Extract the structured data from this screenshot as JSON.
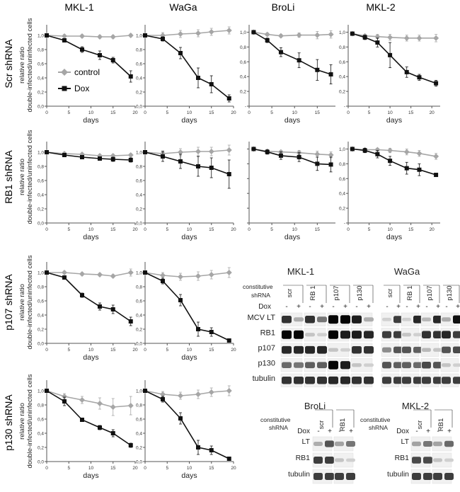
{
  "labels": {
    "days": "days",
    "relative_ratio": "relative ratio",
    "double_infected": "double-infected/uninfected cells",
    "legend_control": "control",
    "legend_dox": "Dox",
    "constitutive": "constitutive",
    "shrna": "shRNA",
    "dox": "Dox",
    "minus": "-",
    "plus": "+"
  },
  "colors": {
    "control": "#a6a6a6",
    "dox": "#111111"
  },
  "column_titles": [
    "MKL-1",
    "WaGa",
    "BroLi",
    "MKL-2"
  ],
  "row_labels": [
    "Scr shRNA",
    "RB1 shRNA",
    "p107 shRNA",
    "p130 shRNA"
  ],
  "chart_data": [
    {
      "type": "line",
      "row": "Scr shRNA",
      "title": "MKL-1",
      "xlabel": "days",
      "ylabel": "relative ratio double-infected/uninfected cells",
      "xticks": [
        "0",
        "5",
        "10",
        "15",
        "20"
      ],
      "xlim": [
        0,
        20
      ],
      "yticks": [
        "0,0",
        "0,2",
        "0,4",
        "0,6",
        "0,8",
        "1,0"
      ],
      "ylim": [
        0,
        1.15
      ],
      "legend": [
        "control",
        "Dox"
      ],
      "series": [
        {
          "name": "control",
          "x": [
            0,
            4,
            8,
            12,
            15,
            19
          ],
          "y": [
            1.0,
            0.99,
            0.99,
            0.98,
            0.98,
            1.0
          ],
          "err": [
            0.01,
            0.02,
            0.02,
            0.02,
            0.02,
            0.02
          ]
        },
        {
          "name": "Dox",
          "x": [
            0,
            4,
            8,
            12,
            15,
            19
          ],
          "y": [
            1.0,
            0.93,
            0.8,
            0.72,
            0.65,
            0.42
          ],
          "err": [
            0.01,
            0.02,
            0.04,
            0.06,
            0.04,
            0.08
          ]
        }
      ]
    },
    {
      "type": "line",
      "row": "Scr shRNA",
      "title": "WaGa",
      "xlabel": "days",
      "xticks": [
        "0",
        "5",
        "10",
        "15",
        "20"
      ],
      "xlim": [
        0,
        20
      ],
      "yticks": [
        "0,0",
        "0,2",
        "0,4",
        "0,6",
        "0,8",
        "1,0"
      ],
      "ylim": [
        0,
        1.15
      ],
      "series": [
        {
          "name": "control",
          "x": [
            0,
            4,
            8,
            12,
            15,
            19
          ],
          "y": [
            1.0,
            1.0,
            1.02,
            1.03,
            1.05,
            1.07
          ],
          "err": [
            0.01,
            0.04,
            0.05,
            0.05,
            0.05,
            0.05
          ]
        },
        {
          "name": "Dox",
          "x": [
            0,
            4,
            8,
            12,
            15,
            19
          ],
          "y": [
            1.0,
            0.95,
            0.75,
            0.4,
            0.31,
            0.11
          ],
          "err": [
            0.01,
            0.03,
            0.08,
            0.14,
            0.12,
            0.05
          ]
        }
      ]
    },
    {
      "type": "line",
      "row": "Scr shRNA",
      "title": "BroLi",
      "xlabel": "days",
      "xticks": [
        "0",
        "5",
        "10",
        "15"
      ],
      "xlim": [
        0,
        19
      ],
      "yticks": [
        "-",
        "0,2",
        "0,4",
        "0,6",
        "0,8",
        "1,0"
      ],
      "ylim": [
        0,
        1.1
      ],
      "series": [
        {
          "name": "control",
          "x": [
            1,
            4,
            7,
            11,
            15,
            18
          ],
          "y": [
            1.0,
            0.97,
            0.95,
            0.96,
            0.96,
            0.97
          ],
          "err": [
            0.01,
            0.02,
            0.02,
            0.03,
            0.05,
            0.05
          ]
        },
        {
          "name": "Dox",
          "x": [
            1,
            4,
            7,
            11,
            15,
            18
          ],
          "y": [
            1.0,
            0.89,
            0.73,
            0.62,
            0.49,
            0.43
          ],
          "err": [
            0.01,
            0.03,
            0.06,
            0.1,
            0.14,
            0.13
          ]
        }
      ]
    },
    {
      "type": "line",
      "row": "Scr shRNA",
      "title": "MKL-2",
      "xlabel": "days",
      "xticks": [
        "0",
        "5",
        "10",
        "15",
        "20"
      ],
      "xlim": [
        0,
        22
      ],
      "yticks": [
        "-",
        "0,2",
        "0,4",
        "0,6",
        "0,8",
        "1,0"
      ],
      "ylim": [
        0,
        1.1
      ],
      "series": [
        {
          "name": "control",
          "x": [
            1,
            4,
            7,
            10,
            14,
            17,
            21
          ],
          "y": [
            0.98,
            0.95,
            0.94,
            0.93,
            0.92,
            0.92,
            0.92
          ],
          "err": [
            0.01,
            0.02,
            0.03,
            0.04,
            0.04,
            0.04,
            0.05
          ]
        },
        {
          "name": "Dox",
          "x": [
            1,
            4,
            7,
            10,
            14,
            17,
            21
          ],
          "y": [
            0.98,
            0.93,
            0.86,
            0.69,
            0.46,
            0.39,
            0.31
          ],
          "err": [
            0.01,
            0.03,
            0.06,
            0.17,
            0.07,
            0.04,
            0.04
          ]
        }
      ]
    },
    {
      "type": "line",
      "row": "RB1 shRNA",
      "title": "MKL-1",
      "xlabel": "days",
      "ylabel": "relative ratio double-infected/uninfected cells",
      "xticks": [
        "0",
        "5",
        "10",
        "15",
        "20"
      ],
      "xlim": [
        0,
        20
      ],
      "yticks": [
        "0,0",
        "0,2",
        "0,4",
        "0,6",
        "0,8",
        "1,0"
      ],
      "ylim": [
        0,
        1.15
      ],
      "series": [
        {
          "name": "control",
          "x": [
            0,
            4,
            8,
            12,
            15,
            19
          ],
          "y": [
            1.0,
            0.98,
            0.97,
            0.95,
            0.95,
            0.96
          ],
          "err": [
            0.01,
            0.02,
            0.02,
            0.02,
            0.02,
            0.02
          ]
        },
        {
          "name": "Dox",
          "x": [
            0,
            4,
            8,
            12,
            15,
            19
          ],
          "y": [
            1.0,
            0.96,
            0.93,
            0.91,
            0.9,
            0.89
          ],
          "err": [
            0.01,
            0.02,
            0.02,
            0.02,
            0.03,
            0.03
          ]
        }
      ]
    },
    {
      "type": "line",
      "row": "RB1 shRNA",
      "title": "WaGa",
      "xlabel": "days",
      "xticks": [
        "0",
        "5",
        "10",
        "15",
        "20"
      ],
      "xlim": [
        0,
        20
      ],
      "yticks": [
        "0,0",
        "0,2",
        "0,4",
        "0,6",
        "0,8",
        "1,0"
      ],
      "ylim": [
        0,
        1.15
      ],
      "series": [
        {
          "name": "control",
          "x": [
            0,
            4,
            8,
            12,
            15,
            19
          ],
          "y": [
            1.0,
            0.98,
            1.0,
            1.01,
            1.01,
            1.03
          ],
          "err": [
            0.01,
            0.04,
            0.05,
            0.06,
            0.06,
            0.07
          ]
        },
        {
          "name": "Dox",
          "x": [
            0,
            4,
            8,
            12,
            15,
            19
          ],
          "y": [
            1.0,
            0.94,
            0.87,
            0.8,
            0.78,
            0.69
          ],
          "err": [
            0.01,
            0.07,
            0.1,
            0.14,
            0.14,
            0.2
          ]
        }
      ]
    },
    {
      "type": "line",
      "row": "RB1 shRNA",
      "title": "BroLi",
      "xlabel": "days",
      "xticks": [
        "0",
        "5",
        "10",
        "15"
      ],
      "xlim": [
        0,
        19
      ],
      "yticks": [
        "",
        "",
        "",
        "",
        "",
        ""
      ],
      "ylim": [
        0,
        1.1
      ],
      "series": [
        {
          "name": "control",
          "x": [
            1,
            4,
            7,
            11,
            15,
            18
          ],
          "y": [
            1.0,
            0.97,
            0.96,
            0.95,
            0.93,
            0.92
          ],
          "err": [
            0.01,
            0.02,
            0.02,
            0.03,
            0.04,
            0.04
          ]
        },
        {
          "name": "Dox",
          "x": [
            1,
            4,
            7,
            11,
            15,
            18
          ],
          "y": [
            1.0,
            0.96,
            0.91,
            0.89,
            0.8,
            0.79
          ],
          "err": [
            0.01,
            0.03,
            0.05,
            0.06,
            0.09,
            0.1
          ]
        }
      ]
    },
    {
      "type": "line",
      "row": "RB1 shRNA",
      "title": "MKL-2",
      "xlabel": "days",
      "xticks": [
        "0",
        "5",
        "10",
        "15",
        "20"
      ],
      "xlim": [
        0,
        22
      ],
      "yticks": [
        "-",
        "0,2",
        "0,4",
        "0,6",
        "0,8",
        "1,0"
      ],
      "ylim": [
        0,
        1.1
      ],
      "series": [
        {
          "name": "control",
          "x": [
            1,
            4,
            7,
            10,
            14,
            17,
            21
          ],
          "y": [
            1.0,
            0.99,
            0.99,
            0.98,
            0.96,
            0.94,
            0.9
          ],
          "err": [
            0.01,
            0.02,
            0.02,
            0.03,
            0.04,
            0.04,
            0.04
          ]
        },
        {
          "name": "Dox",
          "x": [
            1,
            4,
            7,
            10,
            14,
            17,
            21
          ],
          "y": [
            1.0,
            0.98,
            0.93,
            0.84,
            0.74,
            0.72,
            0.65
          ],
          "err": [
            0.01,
            0.03,
            0.05,
            0.06,
            0.08,
            0.08,
            0.02
          ]
        }
      ]
    },
    {
      "type": "line",
      "row": "p107 shRNA",
      "title": "MKL-1",
      "xlabel": "days",
      "ylabel": "relative ratio double-infected/uninfected cells",
      "xticks": [
        "0",
        "5",
        "10",
        "15",
        "20"
      ],
      "xlim": [
        0,
        20
      ],
      "yticks": [
        "0,0",
        "0,2",
        "0,4",
        "0,6",
        "0,8",
        "1,0"
      ],
      "ylim": [
        0,
        1.15
      ],
      "series": [
        {
          "name": "control",
          "x": [
            0,
            4,
            8,
            12,
            15,
            19
          ],
          "y": [
            1.0,
            1.0,
            0.98,
            0.97,
            0.95,
            1.0
          ],
          "err": [
            0.01,
            0.02,
            0.02,
            0.02,
            0.02,
            0.05
          ]
        },
        {
          "name": "Dox",
          "x": [
            0,
            4,
            8,
            12,
            15,
            19
          ],
          "y": [
            1.0,
            0.93,
            0.68,
            0.52,
            0.48,
            0.31
          ],
          "err": [
            0.01,
            0.02,
            0.03,
            0.05,
            0.06,
            0.06
          ]
        }
      ]
    },
    {
      "type": "line",
      "row": "p107 shRNA",
      "title": "WaGa",
      "xlabel": "days",
      "xticks": [
        "0",
        "5",
        "10",
        "15",
        "20"
      ],
      "xlim": [
        0,
        20
      ],
      "yticks": [
        "0,0",
        "0,2",
        "0,4",
        "0,6",
        "0,8",
        "1,0"
      ],
      "ylim": [
        0,
        1.15
      ],
      "series": [
        {
          "name": "control",
          "x": [
            0,
            4,
            8,
            12,
            15,
            19
          ],
          "y": [
            1.0,
            0.96,
            0.94,
            0.95,
            0.97,
            1.0
          ],
          "err": [
            0.01,
            0.04,
            0.05,
            0.06,
            0.06,
            0.07
          ]
        },
        {
          "name": "Dox",
          "x": [
            0,
            4,
            8,
            12,
            15,
            19
          ],
          "y": [
            1.0,
            0.88,
            0.61,
            0.2,
            0.16,
            0.04
          ],
          "err": [
            0.01,
            0.04,
            0.08,
            0.1,
            0.06,
            0.02
          ]
        }
      ]
    },
    {
      "type": "line",
      "row": "p130 shRNA",
      "title": "MKL-1",
      "xlabel": "days",
      "ylabel": "relative ratio double-infected/uninfected cells",
      "xticks": [
        "0",
        "5",
        "10",
        "15",
        "20"
      ],
      "xlim": [
        0,
        20
      ],
      "yticks": [
        "0,0",
        "0,2",
        "0,4",
        "0,6",
        "0,8",
        "1,0"
      ],
      "ylim": [
        0,
        1.15
      ],
      "series": [
        {
          "name": "control",
          "x": [
            0,
            4,
            8,
            12,
            15,
            19
          ],
          "y": [
            1.0,
            0.92,
            0.87,
            0.82,
            0.77,
            0.79
          ],
          "err": [
            0.01,
            0.04,
            0.05,
            0.08,
            0.12,
            0.13
          ]
        },
        {
          "name": "Dox",
          "x": [
            0,
            4,
            8,
            12,
            15,
            19
          ],
          "y": [
            1.0,
            0.85,
            0.59,
            0.48,
            0.4,
            0.23
          ],
          "err": [
            0.01,
            0.06,
            0.02,
            0.03,
            0.05,
            0.03
          ]
        }
      ]
    },
    {
      "type": "line",
      "row": "p130 shRNA",
      "title": "WaGa",
      "xlabel": "days",
      "xticks": [
        "0",
        "5",
        "10",
        "15",
        "20"
      ],
      "xlim": [
        0,
        20
      ],
      "yticks": [
        "0,0",
        "0,2",
        "0,4",
        "0,6",
        "0,8",
        "1,0"
      ],
      "ylim": [
        0,
        1.15
      ],
      "series": [
        {
          "name": "control",
          "x": [
            0,
            4,
            8,
            12,
            15,
            19
          ],
          "y": [
            1.0,
            0.95,
            0.93,
            0.95,
            0.98,
            1.0
          ],
          "err": [
            0.01,
            0.04,
            0.05,
            0.06,
            0.06,
            0.07
          ]
        },
        {
          "name": "Dox",
          "x": [
            0,
            4,
            8,
            12,
            15,
            19
          ],
          "y": [
            1.0,
            0.88,
            0.61,
            0.2,
            0.16,
            0.04
          ],
          "err": [
            0.01,
            0.04,
            0.08,
            0.1,
            0.06,
            0.02
          ]
        }
      ]
    }
  ],
  "blots": [
    {
      "title": "MKL-1",
      "lanes": [
        "scr",
        "RB 1",
        "p107",
        "p130"
      ],
      "rows": [
        "MCV LT",
        "RB1",
        "p107",
        "p130",
        "tubulin"
      ],
      "intensity": [
        [
          0.8,
          0.25,
          0.8,
          0.5,
          1.0,
          1.0,
          0.9,
          0.25
        ],
        [
          1.0,
          1.0,
          0.15,
          0.1,
          1.0,
          0.9,
          0.9,
          0.85
        ],
        [
          0.85,
          0.85,
          0.85,
          0.85,
          0.15,
          0.1,
          0.8,
          0.8
        ],
        [
          0.55,
          0.5,
          0.6,
          0.6,
          1.0,
          0.9,
          0.15,
          0.1
        ],
        [
          0.8,
          0.8,
          0.8,
          0.8,
          0.85,
          0.85,
          0.8,
          0.8
        ]
      ]
    },
    {
      "title": "WaGa",
      "lanes": [
        "scr",
        "RB 1",
        "p107",
        "p130"
      ],
      "rows": [
        "MCV LT",
        "RB1",
        "p107",
        "p130",
        "tubulin"
      ],
      "intensity": [
        [
          0.1,
          0.75,
          0.1,
          0.85,
          0.2,
          0.85,
          0.25,
          0.95
        ],
        [
          0.75,
          0.75,
          0.15,
          0.1,
          0.8,
          0.8,
          0.85,
          0.75
        ],
        [
          0.4,
          0.65,
          0.65,
          0.6,
          0.2,
          0.15,
          0.65,
          0.7
        ],
        [
          0.65,
          0.6,
          0.6,
          0.55,
          0.7,
          0.65,
          0.15,
          0.1
        ],
        [
          0.75,
          0.75,
          0.75,
          0.75,
          0.75,
          0.75,
          0.75,
          0.75
        ]
      ]
    },
    {
      "title": "BroLi",
      "lanes": [
        "scr",
        "RB1"
      ],
      "rows": [
        "LT",
        "RB1",
        "tubulin"
      ],
      "intensity": [
        [
          0.25,
          0.65,
          0.3,
          0.5
        ],
        [
          0.75,
          0.75,
          0.15,
          0.1
        ],
        [
          0.75,
          0.75,
          0.75,
          0.75
        ]
      ]
    },
    {
      "title": "MKL-2",
      "lanes": [
        "scr",
        "RB1"
      ],
      "rows": [
        "LT",
        "RB1",
        "tubulin"
      ],
      "intensity": [
        [
          0.3,
          0.5,
          0.3,
          0.55
        ],
        [
          0.7,
          0.7,
          0.15,
          0.1
        ],
        [
          0.75,
          0.75,
          0.75,
          0.75
        ]
      ]
    }
  ]
}
